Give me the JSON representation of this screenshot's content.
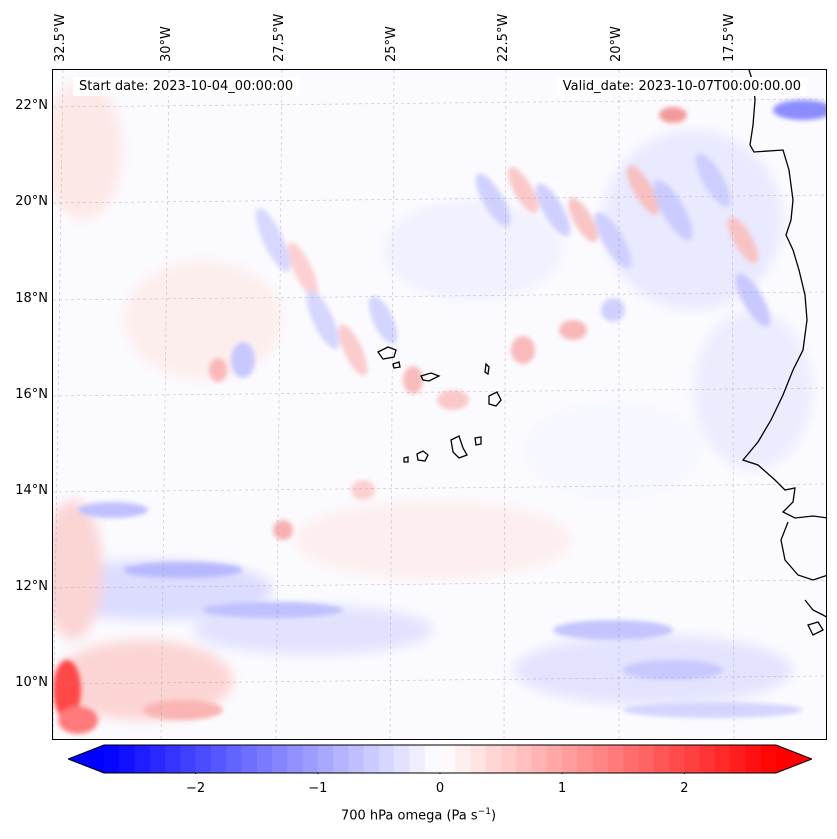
{
  "header": {
    "start_date": "Start date: 2023-10-04_00:00:00",
    "valid_date": "Valid_date: 2023-10-07T00:00:00.00"
  },
  "map": {
    "longitude_labels": [
      "32.5°W",
      "30°W",
      "27.5°W",
      "25°W",
      "22.5°W",
      "20°W",
      "17.5°W"
    ],
    "latitude_labels": [
      "22°N",
      "20°N",
      "18°N",
      "16°N",
      "14°N",
      "12°N",
      "10°N"
    ],
    "extent": {
      "lon_min": -32.8,
      "lon_max": -15.1,
      "lat_min": 8.9,
      "lat_max": 22.8
    },
    "gridlines": true,
    "field": "700 hPa omega"
  },
  "colorbar": {
    "ticks": [
      "−2",
      "−1",
      "0",
      "1",
      "2"
    ],
    "range": [
      -2.75,
      2.75
    ],
    "colormap": "bwr",
    "label_main": "700 hPa omega (Pa s",
    "label_exp": "−1",
    "label_close": ")",
    "neg_color": "#0000ff",
    "mid_color": "#ffffff",
    "pos_color": "#ff0000"
  }
}
